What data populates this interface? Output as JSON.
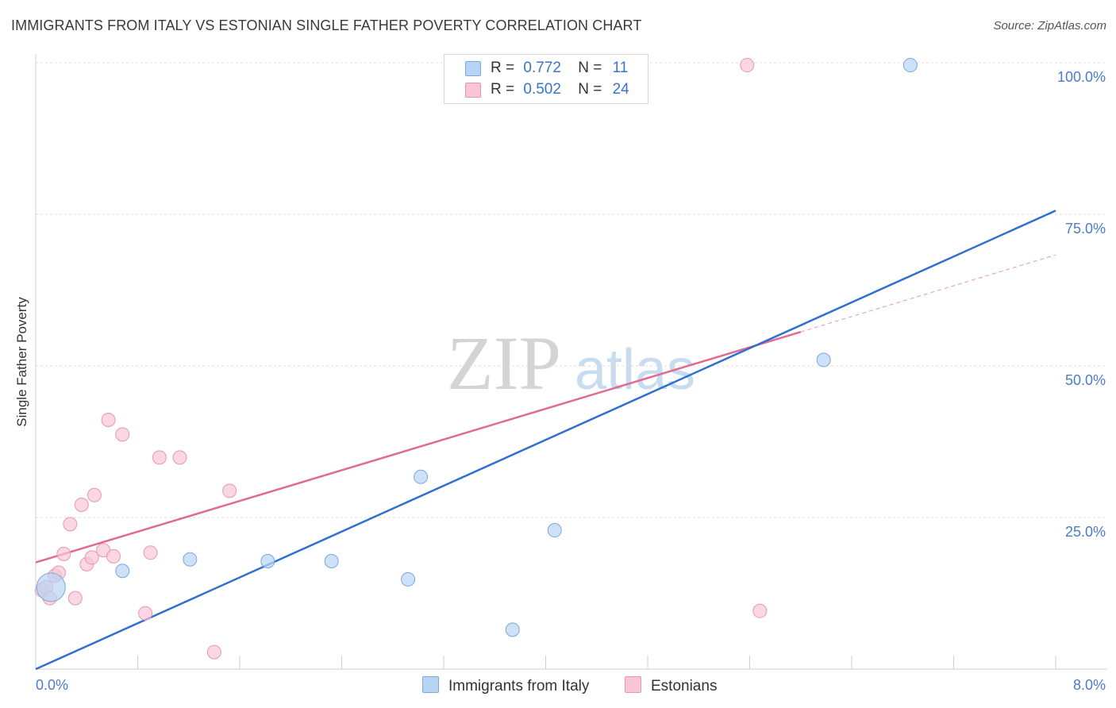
{
  "title": "IMMIGRANTS FROM ITALY VS ESTONIAN SINGLE FATHER POVERTY CORRELATION CHART",
  "source": "Source: ZipAtlas.com",
  "watermark": {
    "zip": "ZIP",
    "atlas": "atlas"
  },
  "legend": {
    "italy": {
      "r_label": "R =",
      "r_value": "0.772",
      "n_label": "N =",
      "n_value": "11"
    },
    "estonians": {
      "r_label": "R =",
      "r_value": "0.502",
      "n_label": "N =",
      "n_value": "24"
    }
  },
  "bottom_legend": {
    "italy": "Immigrants from Italy",
    "estonians": "Estonians"
  },
  "colors": {
    "italy_fill": "#b8d4f5",
    "italy_stroke": "#7aa7dc",
    "italy_line": "#2f6fcf",
    "estonian_fill": "#f8c6d6",
    "estonian_stroke": "#e996b2",
    "estonian_line": "#e06a92",
    "axis_text": "#4a7cc8",
    "grid": "#dcdcdc"
  },
  "chart_data": {
    "type": "scatter",
    "title": "IMMIGRANTS FROM ITALY VS ESTONIAN SINGLE FATHER POVERTY CORRELATION CHART",
    "xlabel": "",
    "ylabel": "Single Father Poverty",
    "xlim": [
      0,
      8
    ],
    "ylim": [
      0,
      100
    ],
    "x_tick_labels": [
      "0.0%",
      "8.0%"
    ],
    "y_ticks": [
      25,
      50,
      75,
      100
    ],
    "y_tick_labels": [
      "25.0%",
      "50.0%",
      "75.0%",
      "100.0%"
    ],
    "series": [
      {
        "name": "Immigrants from Italy",
        "points": [
          {
            "x": 0.12,
            "y": 13.5,
            "size": "large"
          },
          {
            "x": 0.68,
            "y": 16.2
          },
          {
            "x": 1.21,
            "y": 18.1
          },
          {
            "x": 1.82,
            "y": 17.8
          },
          {
            "x": 2.32,
            "y": 17.8
          },
          {
            "x": 2.92,
            "y": 14.8
          },
          {
            "x": 3.02,
            "y": 31.7
          },
          {
            "x": 3.74,
            "y": 6.5
          },
          {
            "x": 4.07,
            "y": 22.9
          },
          {
            "x": 6.18,
            "y": 51.0
          },
          {
            "x": 6.86,
            "y": 99.6
          }
        ],
        "trend": {
          "x": [
            0,
            8
          ],
          "y": [
            0,
            75.6
          ]
        }
      },
      {
        "name": "Estonians",
        "points": [
          {
            "x": 0.05,
            "y": 13.0
          },
          {
            "x": 0.08,
            "y": 13.5
          },
          {
            "x": 0.11,
            "y": 11.7
          },
          {
            "x": 0.15,
            "y": 15.4
          },
          {
            "x": 0.18,
            "y": 15.9
          },
          {
            "x": 0.22,
            "y": 19.0
          },
          {
            "x": 0.27,
            "y": 23.9
          },
          {
            "x": 0.31,
            "y": 11.7
          },
          {
            "x": 0.36,
            "y": 27.1
          },
          {
            "x": 0.4,
            "y": 17.3
          },
          {
            "x": 0.44,
            "y": 18.4
          },
          {
            "x": 0.46,
            "y": 28.7
          },
          {
            "x": 0.53,
            "y": 19.6
          },
          {
            "x": 0.57,
            "y": 41.1
          },
          {
            "x": 0.61,
            "y": 18.6
          },
          {
            "x": 0.68,
            "y": 38.7
          },
          {
            "x": 0.86,
            "y": 9.2
          },
          {
            "x": 0.9,
            "y": 19.2
          },
          {
            "x": 0.97,
            "y": 34.9
          },
          {
            "x": 1.13,
            "y": 34.9
          },
          {
            "x": 1.4,
            "y": 2.8
          },
          {
            "x": 1.52,
            "y": 29.4
          },
          {
            "x": 5.58,
            "y": 99.6
          },
          {
            "x": 5.68,
            "y": 9.6
          }
        ],
        "trend": {
          "x": [
            0,
            6.0
          ],
          "y": [
            17.6,
            55.6
          ]
        },
        "trend_extension": {
          "x": [
            6.0,
            8.0
          ],
          "y": [
            55.6,
            68.3
          ]
        }
      }
    ]
  }
}
